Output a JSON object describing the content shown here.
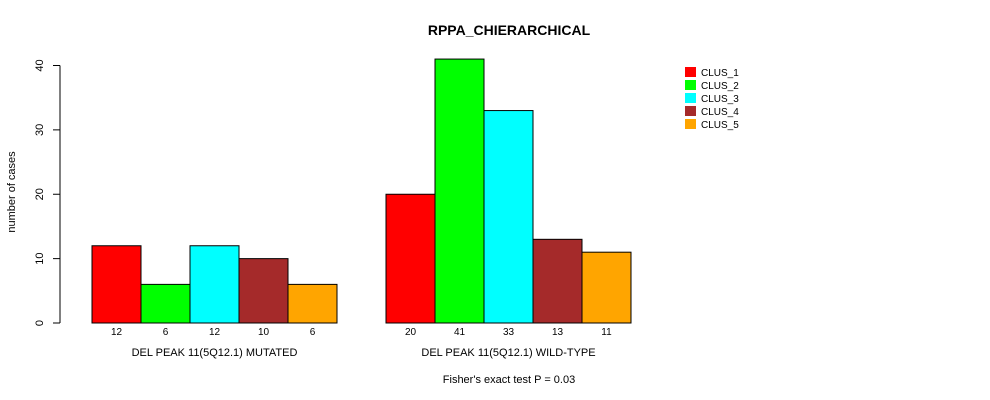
{
  "chart_data": {
    "type": "bar",
    "title": "RPPA_CHIERARCHICAL",
    "ylabel": "number of cases",
    "xlabel": "",
    "ylim": [
      0,
      40
    ],
    "yticks": [
      0,
      10,
      20,
      30,
      40
    ],
    "groups": [
      "DEL PEAK 11(5Q12.1) MUTATED",
      "DEL PEAK 11(5Q12.1) WILD-TYPE"
    ],
    "series": [
      {
        "name": "CLUS_1",
        "color": "#ff0000",
        "values": [
          12,
          20
        ]
      },
      {
        "name": "CLUS_2",
        "color": "#00ff00",
        "values": [
          6,
          41
        ]
      },
      {
        "name": "CLUS_3",
        "color": "#00ffff",
        "values": [
          12,
          33
        ]
      },
      {
        "name": "CLUS_4",
        "color": "#a52a2a",
        "values": [
          10,
          13
        ]
      },
      {
        "name": "CLUS_5",
        "color": "#ffa500",
        "values": [
          6,
          11
        ]
      }
    ],
    "legend_position": "top-right",
    "footnote": "Fisher's exact test P = 0.03"
  }
}
